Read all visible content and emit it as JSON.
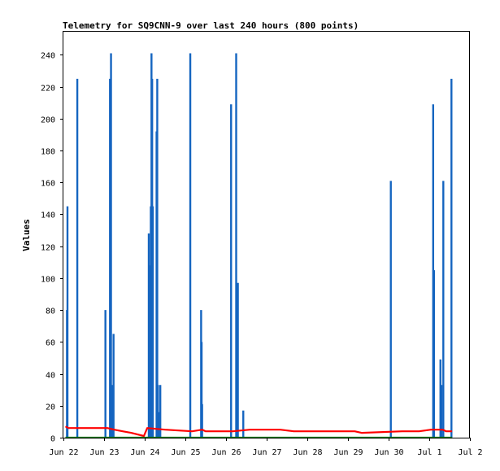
{
  "chart_data": {
    "type": "line",
    "title": "Telemetry for SQ9CNN-9 over last 240 hours (800 points)",
    "xlabel": "",
    "ylabel": "Values",
    "ylim": [
      0,
      255
    ],
    "xlim_hours": [
      0,
      240
    ],
    "y_ticks": [
      0,
      20,
      40,
      60,
      80,
      100,
      120,
      140,
      160,
      180,
      200,
      220,
      240
    ],
    "x_ticks": [
      {
        "hours": 0,
        "label": "Jun 22"
      },
      {
        "hours": 24,
        "label": "Jun 23"
      },
      {
        "hours": 48,
        "label": "Jun 24"
      },
      {
        "hours": 72,
        "label": "Jun 25"
      },
      {
        "hours": 96,
        "label": "Jun 26"
      },
      {
        "hours": 120,
        "label": "Jun 27"
      },
      {
        "hours": 144,
        "label": "Jun 28"
      },
      {
        "hours": 168,
        "label": "Jun 29"
      },
      {
        "hours": 192,
        "label": "Jun 30"
      },
      {
        "hours": 216,
        "label": "Jul 1"
      },
      {
        "hours": 240,
        "label": "Jul 2"
      }
    ],
    "grid": false,
    "series": [
      {
        "color": "#1565c0",
        "style": "impulse",
        "points": [
          {
            "x": 2.1,
            "y": 80
          },
          {
            "x": 2.4,
            "y": 145
          },
          {
            "x": 8.2,
            "y": 225
          },
          {
            "x": 24.8,
            "y": 80
          },
          {
            "x": 27.5,
            "y": 225
          },
          {
            "x": 28.1,
            "y": 241
          },
          {
            "x": 28.8,
            "y": 33
          },
          {
            "x": 29.6,
            "y": 65
          },
          {
            "x": 50.4,
            "y": 128
          },
          {
            "x": 50.9,
            "y": 108
          },
          {
            "x": 51.6,
            "y": 145
          },
          {
            "x": 52.0,
            "y": 241
          },
          {
            "x": 52.4,
            "y": 225
          },
          {
            "x": 52.8,
            "y": 145
          },
          {
            "x": 55.0,
            "y": 192
          },
          {
            "x": 55.4,
            "y": 225
          },
          {
            "x": 55.8,
            "y": 33
          },
          {
            "x": 56.3,
            "y": 16
          },
          {
            "x": 57.2,
            "y": 33
          },
          {
            "x": 74.9,
            "y": 241
          },
          {
            "x": 81.3,
            "y": 80
          },
          {
            "x": 81.6,
            "y": 60
          },
          {
            "x": 81.9,
            "y": 21
          },
          {
            "x": 99.0,
            "y": 209
          },
          {
            "x": 102.0,
            "y": 241
          },
          {
            "x": 102.5,
            "y": 49
          },
          {
            "x": 103.0,
            "y": 97
          },
          {
            "x": 106.2,
            "y": 17
          },
          {
            "x": 193.3,
            "y": 161
          },
          {
            "x": 218.3,
            "y": 209
          },
          {
            "x": 218.8,
            "y": 105
          },
          {
            "x": 222.6,
            "y": 49
          },
          {
            "x": 223.2,
            "y": 33
          },
          {
            "x": 224.3,
            "y": 161
          },
          {
            "x": 229.1,
            "y": 225
          }
        ]
      },
      {
        "color": "#ff0000",
        "style": "line",
        "points": [
          {
            "x": 1.2,
            "y": 7
          },
          {
            "x": 3.0,
            "y": 6
          },
          {
            "x": 26.0,
            "y": 6
          },
          {
            "x": 30.0,
            "y": 5
          },
          {
            "x": 35.0,
            "y": 4
          },
          {
            "x": 40.0,
            "y": 3
          },
          {
            "x": 47.5,
            "y": 1
          },
          {
            "x": 49.5,
            "y": 6
          },
          {
            "x": 60.0,
            "y": 5
          },
          {
            "x": 76.0,
            "y": 4
          },
          {
            "x": 82.0,
            "y": 5
          },
          {
            "x": 84.0,
            "y": 4
          },
          {
            "x": 100.0,
            "y": 4
          },
          {
            "x": 110.0,
            "y": 5
          },
          {
            "x": 128.0,
            "y": 5
          },
          {
            "x": 136.0,
            "y": 4
          },
          {
            "x": 172.0,
            "y": 4
          },
          {
            "x": 176.0,
            "y": 3
          },
          {
            "x": 200.0,
            "y": 4
          },
          {
            "x": 210.0,
            "y": 4
          },
          {
            "x": 217.0,
            "y": 5
          },
          {
            "x": 224.0,
            "y": 5
          },
          {
            "x": 226.0,
            "y": 4
          },
          {
            "x": 229.5,
            "y": 4
          }
        ]
      },
      {
        "color": "#008000",
        "style": "line",
        "points": [
          {
            "x": 1.2,
            "y": 0
          },
          {
            "x": 229.5,
            "y": 0
          }
        ]
      }
    ]
  }
}
